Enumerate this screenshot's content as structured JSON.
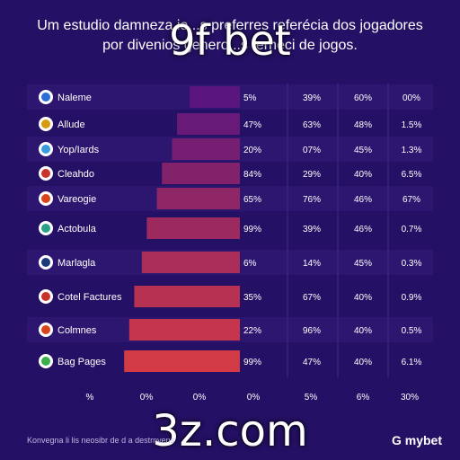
{
  "header": {
    "title_line1": "Um estudio damneza io...s preferres referécia dos jogadores",
    "title_line2": "por divenios genero...s terneci de jogos."
  },
  "overlays": {
    "top_text": "9f bet",
    "bottom_text": "3z.com"
  },
  "footer": {
    "note": "Konvegna li lis neosibr de d a destrnvens",
    "brand": "G mybet"
  },
  "colors": {
    "background": "#241064",
    "bar_start": "#5a167e",
    "bar_end": "#d23a46",
    "row_band": "#2c1670",
    "grid": "#3e2c86"
  },
  "chart_data": {
    "type": "bar",
    "orientation": "horizontal",
    "title": "",
    "xlabel": "",
    "ylabel": "",
    "xlim": [
      0,
      100
    ],
    "x_tick_labels": [
      "%",
      "0%",
      "0%",
      "0%",
      "5%",
      "6%",
      "30%"
    ],
    "columns": [
      "",
      "",
      "",
      ""
    ],
    "categories": [
      {
        "label": "Naleme",
        "icon": "info-icon",
        "icon_color": "#2a6dd6",
        "bar_label": "5%",
        "c2": "39%",
        "c3": "60%",
        "c4": "00%"
      },
      {
        "label": "Allude",
        "icon": "info-icon",
        "icon_color": "#d89a12",
        "bar_label": "47%",
        "c2": "63%",
        "c3": "48%",
        "c4": "1.5%"
      },
      {
        "label": "Yop/Iards",
        "icon": "globe-icon",
        "icon_color": "#3a9bd9",
        "bar_label": "20%",
        "c2": "07%",
        "c3": "45%",
        "c4": "1.3%"
      },
      {
        "label": "Cleahdo",
        "icon": "flame-icon",
        "icon_color": "#c8342c",
        "bar_label": "84%",
        "c2": "29%",
        "c3": "40%",
        "c4": "6.5%"
      },
      {
        "label": "Vareogie",
        "icon": "sun-icon",
        "icon_color": "#d8451c",
        "bar_label": "65%",
        "c2": "76%",
        "c3": "46%",
        "c4": "67%"
      },
      {
        "label": "Actobula",
        "icon": "globe-icon",
        "icon_color": "#2aa08a",
        "bar_label": "99%",
        "c2": "39%",
        "c3": "46%",
        "c4": "0.7%"
      },
      {
        "label": "Marlagla",
        "icon": "t-icon",
        "icon_color": "#1c3a7a",
        "bar_label": "6%",
        "c2": "14%",
        "c3": "45%",
        "c4": "0.3%"
      },
      {
        "label": "Cotel Factures",
        "icon": "flame-icon",
        "icon_color": "#c8342c",
        "bar_label": "35%",
        "c2": "67%",
        "c3": "40%",
        "c4": "0.9%"
      },
      {
        "label": "Colmnes",
        "icon": "flame-icon",
        "icon_color": "#d8451c",
        "bar_label": "22%",
        "c2": "96%",
        "c3": "40%",
        "c4": "0.5%"
      },
      {
        "label": "Bag Pages",
        "icon": "leaf-icon",
        "icon_color": "#3ab04a",
        "bar_label": "99%",
        "c2": "47%",
        "c3": "40%",
        "c4": "6.1%"
      }
    ],
    "series": [
      {
        "values": [
          20,
          25,
          27,
          31,
          33,
          37,
          39,
          42,
          44,
          46
        ]
      }
    ],
    "grid": true,
    "legend": "none"
  }
}
